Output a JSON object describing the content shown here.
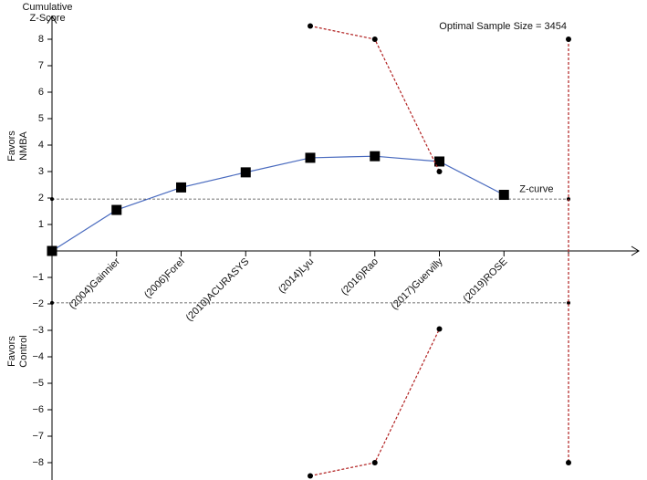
{
  "chart_data": {
    "type": "line",
    "y_title": [
      "Cumulative",
      "Z-Score"
    ],
    "side_labels": [
      [
        "Favors",
        "NMBA"
      ],
      [
        "Favors",
        "Control"
      ]
    ],
    "categories": [
      null,
      "(2004)Gainnier",
      "(2006)Forel",
      "(2010)ACURASYS",
      "(2014)Lyu",
      "(2016)Rao",
      "(2017)Guervilly",
      "(2019)ROSE",
      null
    ],
    "series": [
      {
        "name": "Z-curve",
        "color": "#4a6bbf",
        "values": [
          0,
          1.55,
          2.4,
          2.97,
          3.52,
          3.58,
          3.38,
          2.12,
          null
        ]
      },
      {
        "color": "#b22222",
        "values": [
          null,
          null,
          null,
          null,
          8.5,
          8.0,
          3.0,
          null,
          null
        ]
      },
      {
        "color": "#b22222",
        "values": [
          null,
          null,
          null,
          null,
          -8.5,
          -8.0,
          -2.95,
          null,
          null
        ]
      }
    ],
    "thresholds": [
      1.96,
      -1.96
    ],
    "optimal": {
      "label": "Optimal Sample Size = 3454",
      "range": [
        8,
        -8
      ]
    },
    "ylim": [
      -8.6,
      8.6
    ],
    "yticks": [
      1,
      2,
      3,
      4,
      5,
      6,
      7,
      8,
      {
        "value": -1,
        "label": "−1"
      },
      {
        "value": -2,
        "label": "−2"
      },
      {
        "value": -3,
        "label": "−3"
      },
      {
        "value": -4,
        "label": "−4"
      },
      {
        "value": -5,
        "label": "−5"
      },
      {
        "value": -6,
        "label": "−6"
      },
      {
        "value": -7,
        "label": "−7"
      },
      {
        "value": -8,
        "label": "−8"
      }
    ]
  }
}
